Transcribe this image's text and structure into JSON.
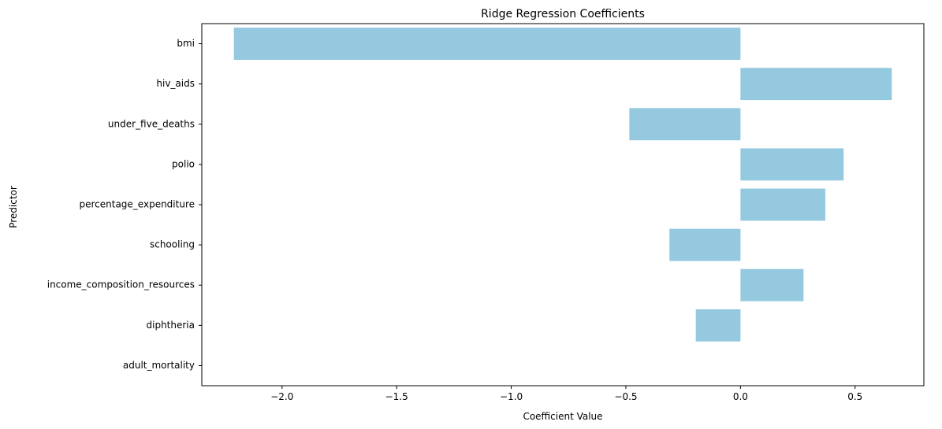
{
  "chart_data": {
    "type": "bar",
    "orientation": "horizontal",
    "title": "Ridge Regression Coefficients",
    "xlabel": "Coefficient Value",
    "ylabel": "Predictor",
    "categories": [
      "bmi",
      "hiv_aids",
      "under_five_deaths",
      "polio",
      "percentage_expenditure",
      "schooling",
      "income_composition_resources",
      "diphtheria",
      "adult_mortality"
    ],
    "values": [
      -2.21,
      0.66,
      -0.485,
      0.45,
      0.37,
      -0.31,
      0.275,
      -0.195,
      0.0
    ],
    "xlim": [
      -2.35,
      0.8
    ],
    "xticks": [
      -2.0,
      -1.5,
      -1.0,
      -0.5,
      0.0,
      0.5
    ],
    "xtick_labels": [
      "−2.0",
      "−1.5",
      "−1.0",
      "−0.5",
      "0.0",
      "0.5"
    ],
    "bar_color": "#95c9df",
    "grid": false,
    "legend": "none"
  }
}
